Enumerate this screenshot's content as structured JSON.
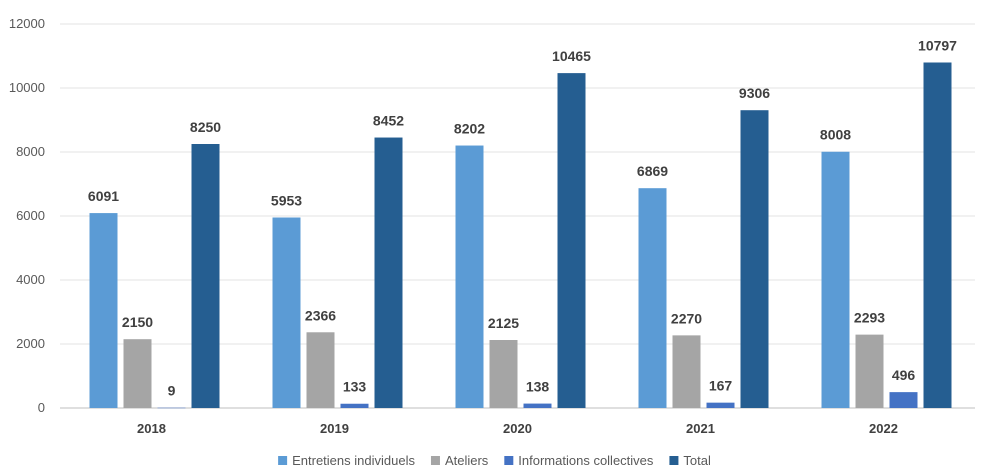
{
  "chart_data": {
    "type": "bar",
    "title": "",
    "xlabel": "",
    "ylabel": "",
    "categories": [
      "2018",
      "2019",
      "2020",
      "2021",
      "2022"
    ],
    "series": [
      {
        "name": "Entretiens individuels",
        "color": "#5b9bd5",
        "values": [
          6091,
          5953,
          8202,
          6869,
          8008
        ]
      },
      {
        "name": "Ateliers",
        "color": "#a5a5a5",
        "values": [
          2150,
          2366,
          2125,
          2270,
          2293
        ]
      },
      {
        "name": "Informations collectives",
        "color": "#4472c4",
        "values": [
          9,
          133,
          138,
          167,
          496
        ]
      },
      {
        "name": "Total",
        "color": "#255e91",
        "values": [
          8250,
          8452,
          10465,
          9306,
          10797
        ]
      }
    ],
    "ylim": [
      0,
      12000
    ],
    "yticks": [
      0,
      2000,
      4000,
      6000,
      8000,
      10000,
      12000
    ],
    "grid": true,
    "legend_position": "bottom",
    "data_labels": true
  }
}
